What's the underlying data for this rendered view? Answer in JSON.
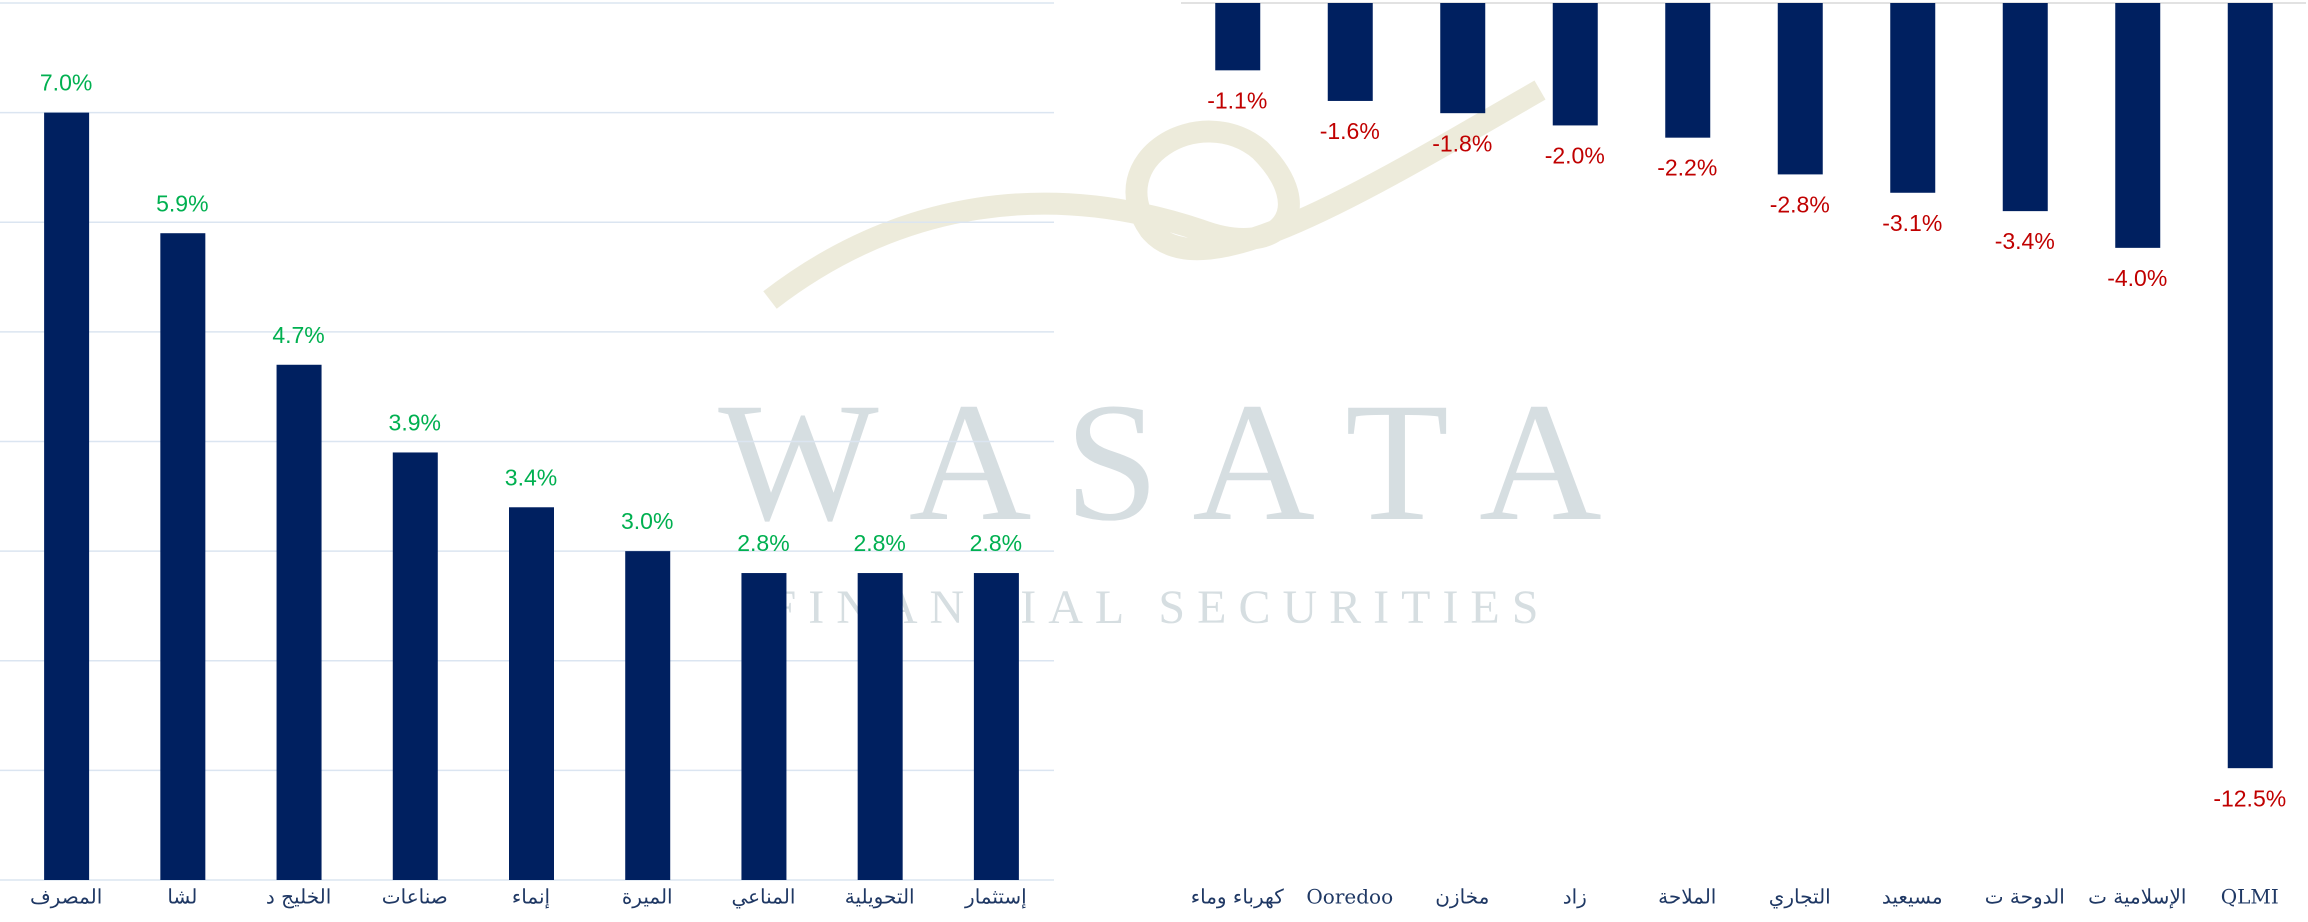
{
  "watermark": {
    "brand": "W A S A T A",
    "tagline": "FINANCIAL SECURITIES"
  },
  "chart_data": [
    {
      "type": "bar",
      "categories": [
        "المصرف",
        "لشا",
        "الخليج د",
        "صناعات",
        "إنماء",
        "الميرة",
        "المناعي",
        "التحويلية",
        "إستثمار"
      ],
      "values": [
        7.0,
        5.9,
        4.7,
        3.9,
        3.4,
        3.0,
        2.8,
        2.8,
        2.8
      ],
      "value_labels": [
        "7.0%",
        "5.9%",
        "4.7%",
        "3.9%",
        "3.4%",
        "3.0%",
        "2.8%",
        "2.8%",
        "2.8%"
      ],
      "color": "#002060",
      "label_color": "#00b050",
      "ylim": [
        0,
        8
      ],
      "yticks": [
        0,
        1,
        2,
        3,
        4,
        5,
        6,
        7,
        8
      ],
      "grid": true
    },
    {
      "type": "bar",
      "categories": [
        "كهرباء وماء",
        "Ooredoo",
        "مخازن",
        "زاد",
        "الملاحة",
        "التجاري",
        "مسيعيد",
        "الدوحة ت",
        "الإسلامية ت",
        "QLMI"
      ],
      "values": [
        -1.1,
        -1.6,
        -1.8,
        -2.0,
        -2.2,
        -2.8,
        -3.1,
        -3.4,
        -4.0,
        -12.5
      ],
      "value_labels": [
        "-1.1%",
        "-1.6%",
        "-1.8%",
        "-2.0%",
        "-2.2%",
        "-2.8%",
        "-3.1%",
        "-3.4%",
        "-4.0%",
        "-12.5%"
      ],
      "color": "#002060",
      "label_color": "#c00000",
      "ylim": [
        -14,
        0
      ],
      "grid": false
    }
  ]
}
